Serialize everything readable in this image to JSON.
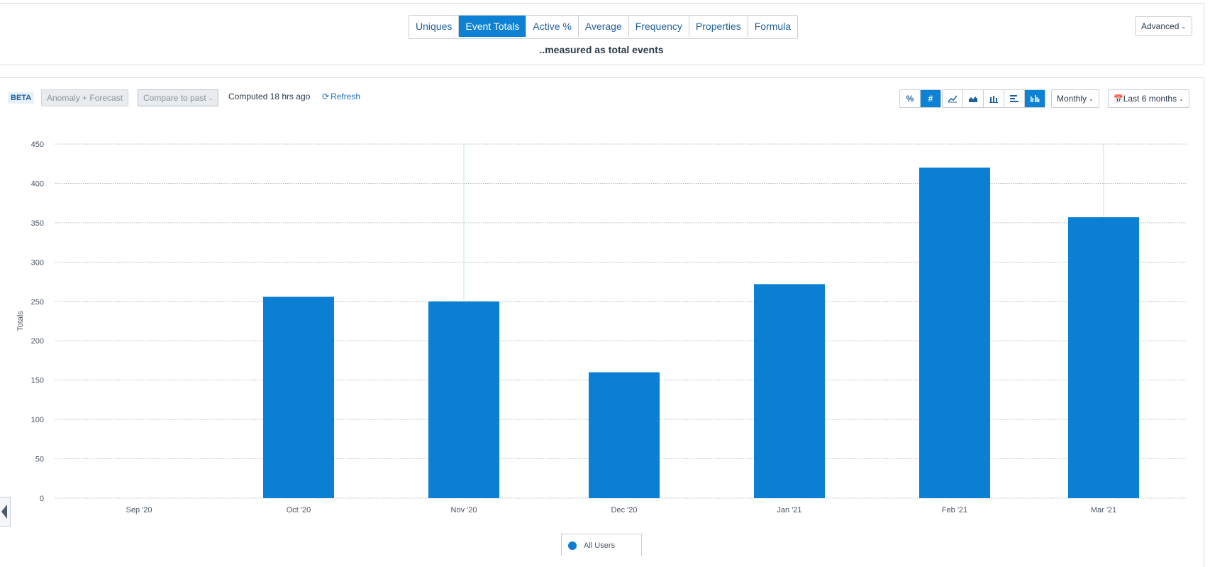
{
  "measure": {
    "tabs": [
      {
        "label": "Uniques",
        "active": false
      },
      {
        "label": "Event Totals",
        "active": true
      },
      {
        "label": "Active %",
        "active": false
      },
      {
        "label": "Average",
        "active": false
      },
      {
        "label": "Frequency",
        "active": false
      },
      {
        "label": "Properties",
        "active": false
      },
      {
        "label": "Formula",
        "active": false
      }
    ],
    "description": "..measured as total events",
    "advanced_label": "Advanced"
  },
  "toolbar": {
    "beta_label": "BETA",
    "anomaly_label": "Anomaly + Forecast",
    "compare_label": "Compare to past",
    "computed_text": "Computed 18 hrs ago",
    "refresh_label": "Refresh",
    "percent_label": "%",
    "count_label": "#",
    "chart_type_icons": [
      "line-chart-icon",
      "area-chart-icon",
      "bar-chart-icon",
      "horizontal-bar-icon",
      "grouped-bar-icon"
    ],
    "active_chart_type": "grouped-bar-icon",
    "interval_label": "Monthly",
    "range_label": "Last 6 months",
    "range_icon": "calendar-icon"
  },
  "colors": {
    "accent": "#0d82d4",
    "bar": "#0a7fd3",
    "grid": "#b8bfc6",
    "hover_line": "#bfe3ec"
  },
  "chart_data": {
    "type": "bar",
    "ylabel": "Totals",
    "xlabel": "",
    "categories": [
      "Sep '20",
      "Oct '20",
      "Nov '20",
      "Dec '20",
      "Jan '21",
      "Feb '21",
      "Mar '21"
    ],
    "series": [
      {
        "name": "All Users",
        "values": [
          0,
          256,
          250,
          160,
          272,
          420,
          357
        ]
      }
    ],
    "ylim": [
      0,
      450
    ],
    "yticks": [
      0,
      50,
      100,
      150,
      200,
      250,
      300,
      350,
      400,
      450
    ],
    "grid": true,
    "legend_position": "bottom-center"
  }
}
